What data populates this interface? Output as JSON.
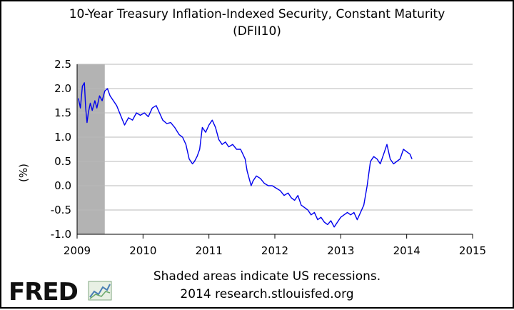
{
  "chart_data": {
    "type": "line",
    "title": "10-Year Treasury Inflation-Indexed Security, Constant Maturity",
    "subtitle": "(DFII10)",
    "xlabel": "",
    "ylabel": "(%)",
    "xlim": [
      2009,
      2015
    ],
    "ylim": [
      -1.0,
      2.5
    ],
    "x_ticks": [
      "2009",
      "2010",
      "2011",
      "2012",
      "2013",
      "2014",
      "2015"
    ],
    "y_ticks": [
      "2.5",
      "2.0",
      "1.5",
      "1.0",
      "0.5",
      "0.0",
      "-0.5",
      "-1.0"
    ],
    "grid": true,
    "recession_shading": [
      [
        2009.0,
        2009.42
      ]
    ],
    "series": [
      {
        "name": "DFII10",
        "color": "#0000ee",
        "x": [
          2009.02,
          2009.05,
          2009.08,
          2009.11,
          2009.13,
          2009.15,
          2009.17,
          2009.2,
          2009.23,
          2009.27,
          2009.3,
          2009.34,
          2009.38,
          2009.42,
          2009.46,
          2009.5,
          2009.55,
          2009.6,
          2009.66,
          2009.72,
          2009.78,
          2009.84,
          2009.9,
          2009.96,
          2010.02,
          2010.08,
          2010.14,
          2010.2,
          2010.25,
          2010.3,
          2010.36,
          2010.42,
          2010.48,
          2010.55,
          2010.6,
          2010.65,
          2010.7,
          2010.75,
          2010.78,
          2010.82,
          2010.86,
          2010.9,
          2010.95,
          2011.0,
          2011.05,
          2011.1,
          2011.15,
          2011.2,
          2011.25,
          2011.3,
          2011.36,
          2011.42,
          2011.48,
          2011.55,
          2011.58,
          2011.61,
          2011.64,
          2011.67,
          2011.72,
          2011.78,
          2011.84,
          2011.9,
          2011.96,
          2012.02,
          2012.08,
          2012.14,
          2012.2,
          2012.25,
          2012.3,
          2012.35,
          2012.4,
          2012.45,
          2012.5,
          2012.55,
          2012.6,
          2012.65,
          2012.7,
          2012.75,
          2012.8,
          2012.85,
          2012.9,
          2012.95,
          2013.0,
          2013.05,
          2013.1,
          2013.15,
          2013.2,
          2013.25,
          2013.3,
          2013.35,
          2013.4,
          2013.45,
          2013.5,
          2013.55,
          2013.6,
          2013.65,
          2013.7,
          2013.75,
          2013.8,
          2013.85,
          2013.9,
          2013.95,
          2014.0,
          2014.05,
          2014.08
        ],
        "values": [
          1.8,
          1.6,
          2.05,
          2.12,
          1.6,
          1.3,
          1.5,
          1.7,
          1.55,
          1.75,
          1.6,
          1.85,
          1.75,
          1.95,
          2.0,
          1.85,
          1.75,
          1.65,
          1.45,
          1.25,
          1.4,
          1.35,
          1.5,
          1.45,
          1.5,
          1.42,
          1.6,
          1.65,
          1.5,
          1.35,
          1.28,
          1.3,
          1.2,
          1.05,
          1.0,
          0.85,
          0.55,
          0.45,
          0.5,
          0.6,
          0.75,
          1.2,
          1.1,
          1.25,
          1.35,
          1.2,
          0.95,
          0.85,
          0.9,
          0.8,
          0.85,
          0.75,
          0.75,
          0.55,
          0.3,
          0.15,
          0.0,
          0.1,
          0.2,
          0.15,
          0.05,
          0.0,
          0.0,
          -0.05,
          -0.1,
          -0.2,
          -0.15,
          -0.25,
          -0.3,
          -0.2,
          -0.4,
          -0.45,
          -0.5,
          -0.6,
          -0.55,
          -0.7,
          -0.65,
          -0.75,
          -0.8,
          -0.72,
          -0.85,
          -0.75,
          -0.65,
          -0.6,
          -0.55,
          -0.6,
          -0.55,
          -0.7,
          -0.55,
          -0.4,
          0.0,
          0.5,
          0.6,
          0.55,
          0.45,
          0.65,
          0.85,
          0.55,
          0.45,
          0.5,
          0.55,
          0.75,
          0.7,
          0.65,
          0.55
        ]
      }
    ]
  },
  "footer": {
    "note": "Shaded areas indicate US recessions.",
    "source": "2014 research.stlouisfed.org"
  },
  "logo": {
    "text": "FRED"
  },
  "colors": {
    "line": "#0000ee",
    "recession": "#b3b3b3",
    "grid": "#b8b8b8"
  }
}
